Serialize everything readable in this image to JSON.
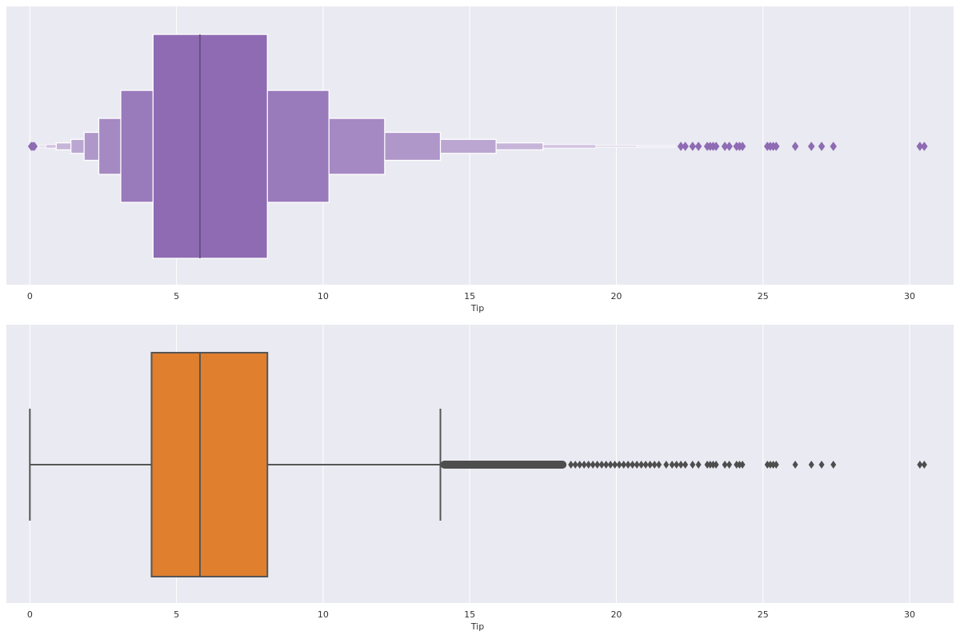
{
  "colors": {
    "background": "#eaeaf2",
    "grid": "#ffffff",
    "boxen_base": "#8e6bb3",
    "box_fill": "#e0802e",
    "box_line": "#555555",
    "outlier_box": "#4d4d4d"
  },
  "chart_data": [
    {
      "type": "boxen",
      "xlabel": "Tip",
      "xlim": [
        -0.8,
        31.5
      ],
      "xticks": [
        0,
        5,
        10,
        15,
        20,
        25,
        30
      ],
      "grid": true,
      "median": 5.8,
      "levels": [
        {
          "low": 4.2,
          "high": 8.1
        },
        {
          "low": 3.1,
          "high": 10.2
        },
        {
          "low": 2.35,
          "high": 12.1
        },
        {
          "low": 1.85,
          "high": 14.0
        },
        {
          "low": 1.4,
          "high": 15.9
        },
        {
          "low": 0.9,
          "high": 17.5
        },
        {
          "low": 0.55,
          "high": 19.3
        },
        {
          "low": 0.3,
          "high": 20.7
        },
        {
          "low": 0.15,
          "high": 22.0
        }
      ],
      "outliers": [
        0.05,
        0.1,
        0.15,
        22.2,
        22.35,
        22.6,
        22.8,
        23.1,
        23.2,
        23.3,
        23.4,
        23.7,
        23.85,
        24.1,
        24.2,
        24.3,
        25.15,
        25.25,
        25.35,
        25.45,
        26.1,
        26.65,
        27.0,
        27.4,
        30.35,
        30.5
      ]
    },
    {
      "type": "box",
      "xlabel": "Tip",
      "xlim": [
        -0.8,
        31.5
      ],
      "xticks": [
        0,
        5,
        10,
        15,
        20,
        25,
        30
      ],
      "grid": true,
      "whisker_low": 0.0,
      "q1": 4.15,
      "median": 5.8,
      "q3": 8.1,
      "whisker_high": 14.0,
      "outlier_dense_range": [
        14.0,
        18.3
      ],
      "outliers": [
        18.45,
        18.6,
        18.75,
        18.9,
        19.05,
        19.2,
        19.35,
        19.5,
        19.65,
        19.8,
        19.95,
        20.1,
        20.25,
        20.4,
        20.55,
        20.7,
        20.85,
        21.0,
        21.15,
        21.3,
        21.45,
        21.7,
        21.9,
        22.05,
        22.2,
        22.35,
        22.6,
        22.8,
        23.1,
        23.2,
        23.3,
        23.4,
        23.7,
        23.85,
        24.1,
        24.2,
        24.3,
        25.15,
        25.25,
        25.35,
        25.45,
        26.1,
        26.65,
        27.0,
        27.4,
        30.35,
        30.5
      ]
    }
  ]
}
